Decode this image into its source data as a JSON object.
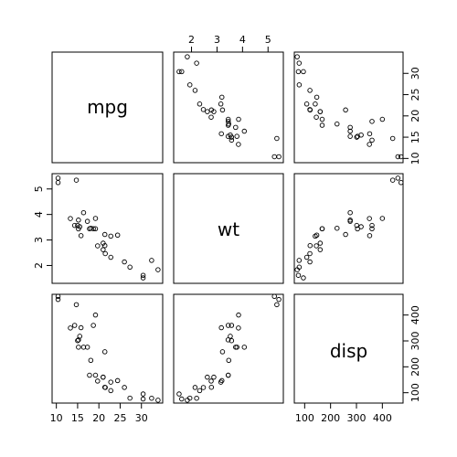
{
  "chart_data": {
    "type": "scatter",
    "plot_kind": "scatterplot-matrix",
    "title": "",
    "variables": [
      "mpg",
      "wt",
      "disp"
    ],
    "axes": {
      "mpg": {
        "range": [
          9,
          35
        ],
        "ticks": [
          10,
          15,
          20,
          25,
          30
        ]
      },
      "wt": {
        "range": [
          1.3,
          5.6
        ],
        "ticks": [
          2,
          3,
          4,
          5
        ]
      },
      "disp": {
        "range": [
          60,
          480
        ],
        "ticks": [
          100,
          200,
          300,
          400
        ]
      }
    },
    "axis_placement": {
      "mpg": {
        "x_side": "bottom",
        "y_side": "right"
      },
      "wt": {
        "x_side": "top",
        "y_side": "left"
      },
      "disp": {
        "x_side": "bottom",
        "y_side": "right"
      }
    },
    "records": [
      {
        "mpg": 21.0,
        "wt": 2.62,
        "disp": 160.0
      },
      {
        "mpg": 21.0,
        "wt": 2.875,
        "disp": 160.0
      },
      {
        "mpg": 22.8,
        "wt": 2.32,
        "disp": 108.0
      },
      {
        "mpg": 21.4,
        "wt": 3.215,
        "disp": 258.0
      },
      {
        "mpg": 18.7,
        "wt": 3.44,
        "disp": 360.0
      },
      {
        "mpg": 18.1,
        "wt": 3.46,
        "disp": 225.0
      },
      {
        "mpg": 14.3,
        "wt": 3.57,
        "disp": 360.0
      },
      {
        "mpg": 24.4,
        "wt": 3.19,
        "disp": 146.7
      },
      {
        "mpg": 22.8,
        "wt": 3.15,
        "disp": 140.8
      },
      {
        "mpg": 19.2,
        "wt": 3.44,
        "disp": 167.6
      },
      {
        "mpg": 17.8,
        "wt": 3.44,
        "disp": 167.6
      },
      {
        "mpg": 16.4,
        "wt": 4.07,
        "disp": 275.8
      },
      {
        "mpg": 17.3,
        "wt": 3.73,
        "disp": 275.8
      },
      {
        "mpg": 15.2,
        "wt": 3.78,
        "disp": 275.8
      },
      {
        "mpg": 10.4,
        "wt": 5.25,
        "disp": 472.0
      },
      {
        "mpg": 10.4,
        "wt": 5.424,
        "disp": 460.0
      },
      {
        "mpg": 14.7,
        "wt": 5.345,
        "disp": 440.0
      },
      {
        "mpg": 32.4,
        "wt": 2.2,
        "disp": 78.7
      },
      {
        "mpg": 30.4,
        "wt": 1.615,
        "disp": 75.7
      },
      {
        "mpg": 33.9,
        "wt": 1.835,
        "disp": 71.1
      },
      {
        "mpg": 21.5,
        "wt": 2.465,
        "disp": 120.1
      },
      {
        "mpg": 15.5,
        "wt": 3.52,
        "disp": 318.0
      },
      {
        "mpg": 15.2,
        "wt": 3.435,
        "disp": 304.0
      },
      {
        "mpg": 13.3,
        "wt": 3.84,
        "disp": 350.0
      },
      {
        "mpg": 19.2,
        "wt": 3.845,
        "disp": 400.0
      },
      {
        "mpg": 27.3,
        "wt": 1.935,
        "disp": 79.0
      },
      {
        "mpg": 26.0,
        "wt": 2.14,
        "disp": 120.3
      },
      {
        "mpg": 30.4,
        "wt": 1.513,
        "disp": 95.1
      },
      {
        "mpg": 15.8,
        "wt": 3.17,
        "disp": 351.0
      },
      {
        "mpg": 19.7,
        "wt": 2.77,
        "disp": 145.0
      },
      {
        "mpg": 15.0,
        "wt": 3.57,
        "disp": 301.0
      },
      {
        "mpg": 21.4,
        "wt": 2.78,
        "disp": 121.0
      }
    ]
  }
}
